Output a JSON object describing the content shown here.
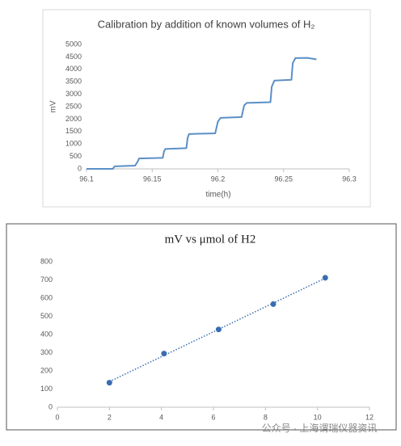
{
  "chart_data": [
    {
      "type": "line",
      "title": "Calibration by addition of known volumes of H₂",
      "x_label": "time(h)",
      "y_label": "mV",
      "x": [
        96.1,
        96.12,
        96.121,
        96.1215,
        96.137,
        96.139,
        96.14,
        96.158,
        96.159,
        96.16,
        96.176,
        96.177,
        96.178,
        96.198,
        96.2,
        96.202,
        96.218,
        96.22,
        96.222,
        96.24,
        96.241,
        96.243,
        96.256,
        96.257,
        96.259,
        96.268,
        96.275
      ],
      "values": [
        0,
        0,
        70,
        100,
        130,
        300,
        420,
        440,
        700,
        800,
        830,
        1250,
        1400,
        1430,
        1900,
        2050,
        2080,
        2550,
        2650,
        2680,
        3300,
        3550,
        3580,
        4250,
        4450,
        4460,
        4400
      ],
      "color": "#5b8fc7",
      "xlim": [
        96.1,
        96.3
      ],
      "xticks": [
        96.1,
        96.15,
        96.2,
        96.25,
        96.3
      ],
      "ylim": [
        0,
        5000
      ],
      "yticks": [
        0,
        500,
        1000,
        1500,
        2000,
        2500,
        3000,
        3500,
        4000,
        4500,
        5000
      ],
      "grid": false
    },
    {
      "type": "scatter",
      "title": "mV vs μmol of H2",
      "x": [
        2,
        4.1,
        6.2,
        8.3,
        10.3
      ],
      "values": [
        135,
        295,
        428,
        567,
        712
      ],
      "color": "#3a6db0",
      "trendline": true,
      "xlim": [
        0,
        12
      ],
      "xticks": [
        0,
        2,
        4,
        6,
        8,
        10,
        12
      ],
      "ylim": [
        0,
        800
      ],
      "yticks": [
        0,
        100,
        200,
        300,
        400,
        500,
        600,
        700,
        800
      ],
      "grid": false
    }
  ],
  "watermark": "公众号 · 上海谓瑞仪器资讯"
}
